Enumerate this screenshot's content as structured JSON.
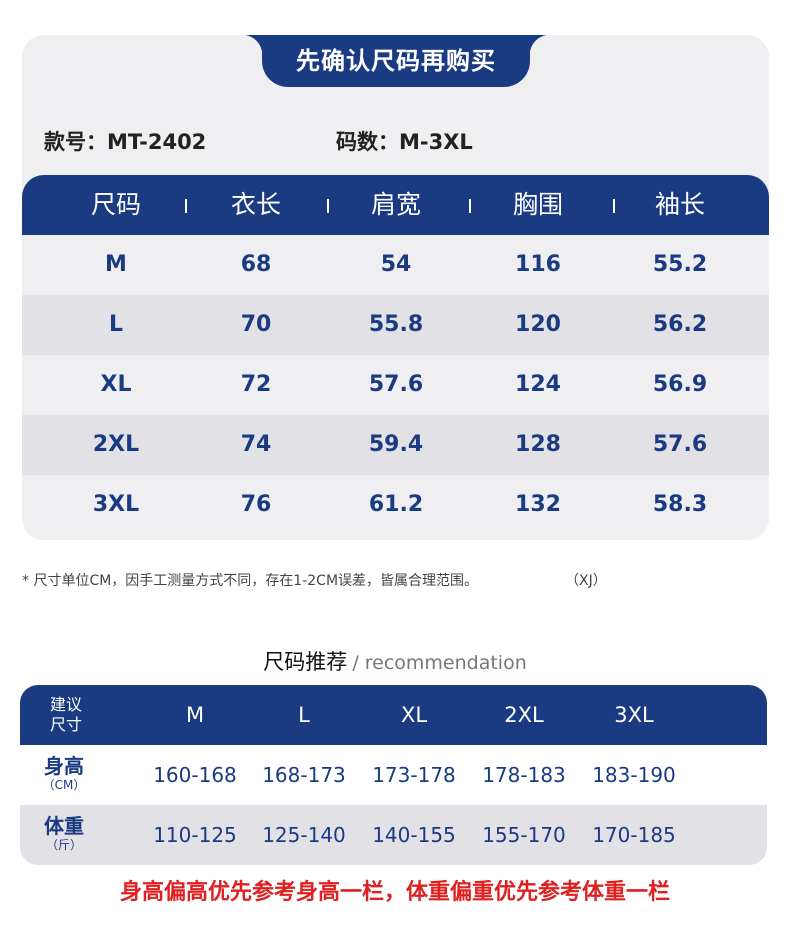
{
  "title": "先确认尺码再购买",
  "meta": {
    "style_label": "款号：",
    "style_value": "MT-2402",
    "size_label": "码数：",
    "size_value": "M-3XL"
  },
  "size_table": {
    "headers": [
      "尺码",
      "衣长",
      "肩宽",
      "胸围",
      "袖长"
    ],
    "rows": [
      [
        "M",
        "68",
        "54",
        "116",
        "55.2"
      ],
      [
        "L",
        "70",
        "55.8",
        "120",
        "56.2"
      ],
      [
        "XL",
        "72",
        "57.6",
        "124",
        "56.9"
      ],
      [
        "2XL",
        "74",
        "59.4",
        "128",
        "57.6"
      ],
      [
        "3XL",
        "76",
        "61.2",
        "132",
        "58.3"
      ]
    ]
  },
  "note": "* 尺寸单位CM，因手工测量方式不同，存在1-2CM误差，皆属合理范围。",
  "note_code": "（XJ）",
  "recommend": {
    "title_zh": "尺码推荐",
    "title_en": "/ recommendation",
    "corner_label_1": "建议",
    "corner_label_2": "尺寸",
    "sizes": [
      "M",
      "L",
      "XL",
      "2XL",
      "3XL"
    ],
    "rows": [
      {
        "label": "身高",
        "unit": "（CM）",
        "values": [
          "160-168",
          "168-173",
          "173-178",
          "178-183",
          "183-190"
        ]
      },
      {
        "label": "体重",
        "unit": "（斤）",
        "values": [
          "110-125",
          "125-140",
          "140-155",
          "155-170",
          "170-185"
        ]
      }
    ]
  },
  "footer": "身高偏高优先参考身高一栏，体重偏重优先参考体重一栏",
  "colors": {
    "navy": "#1a3a82",
    "alt_row": "#e2e2e6",
    "card": "#efeff1",
    "footer_red": "#e02020"
  }
}
